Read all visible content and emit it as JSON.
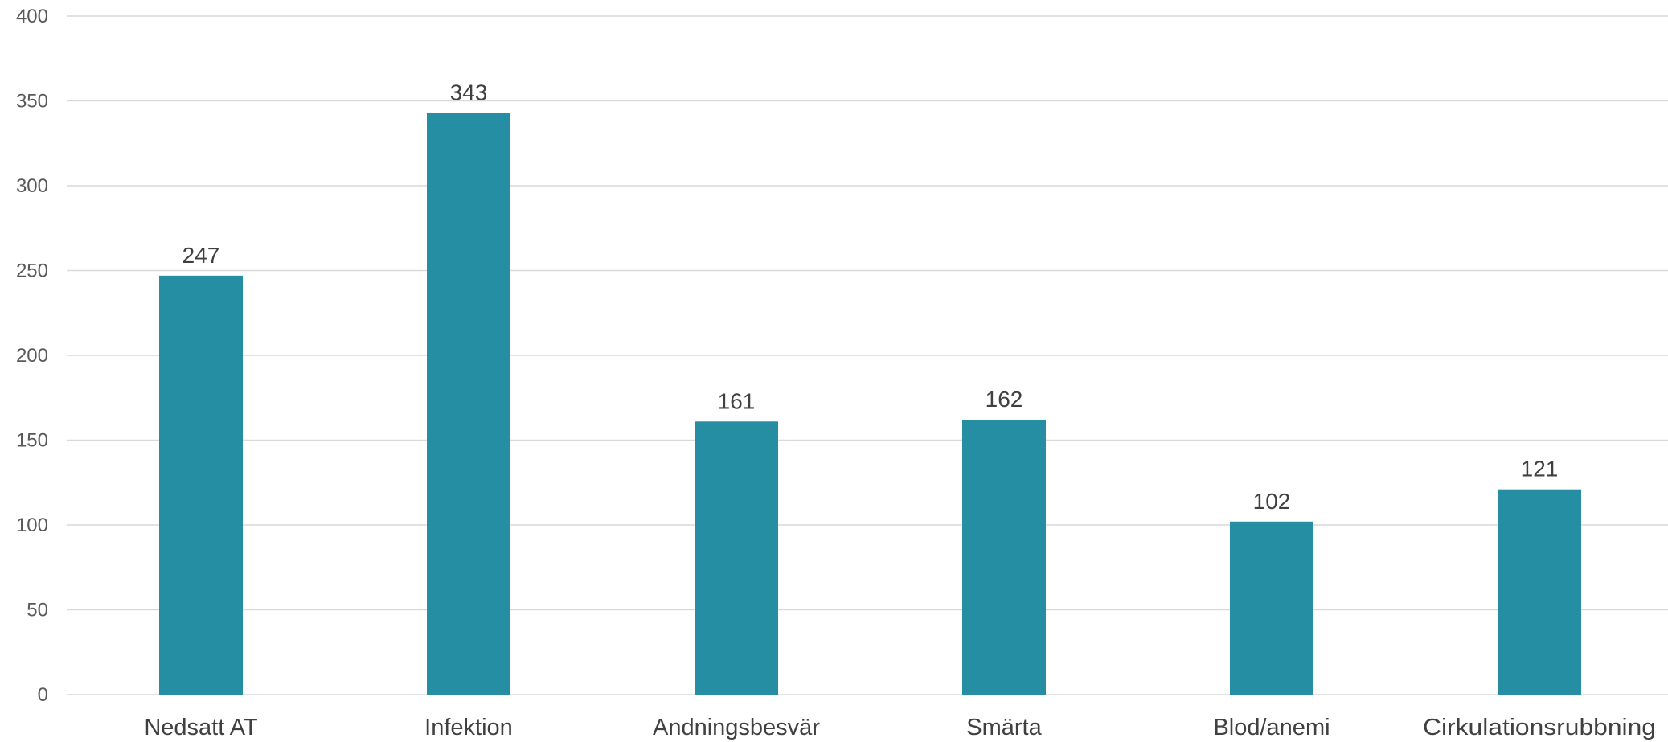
{
  "chart_data": {
    "type": "bar",
    "categories": [
      "Nedsatt AT",
      "Infektion",
      "Andningsbesvär",
      "Smärta",
      "Blod/anemi",
      "Cirkulationsrubbning"
    ],
    "values": [
      247,
      343,
      161,
      162,
      102,
      121
    ],
    "data_labels": [
      "247",
      "343",
      "161",
      "162",
      "102",
      "121"
    ],
    "ylim": [
      0,
      400
    ],
    "yticks": [
      0,
      50,
      100,
      150,
      200,
      250,
      300,
      350,
      400
    ],
    "ytick_labels": [
      "0",
      "50",
      "100",
      "150",
      "200",
      "250",
      "300",
      "350",
      "400"
    ],
    "grid": true,
    "legend": "none",
    "bar_color": "#268ea2"
  }
}
